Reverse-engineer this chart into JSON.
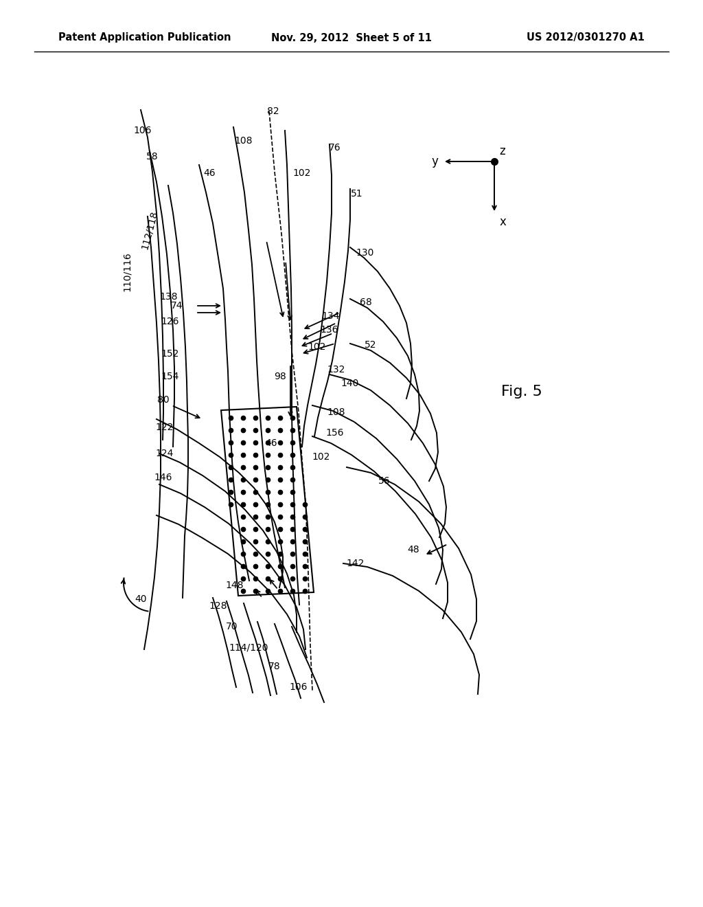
{
  "title_left": "Patent Application Publication",
  "title_center": "Nov. 29, 2012  Sheet 5 of 11",
  "title_right": "US 2012/0301270 A1",
  "fig_label": "Fig. 5",
  "background": "#ffffff",
  "line_color": "#000000"
}
